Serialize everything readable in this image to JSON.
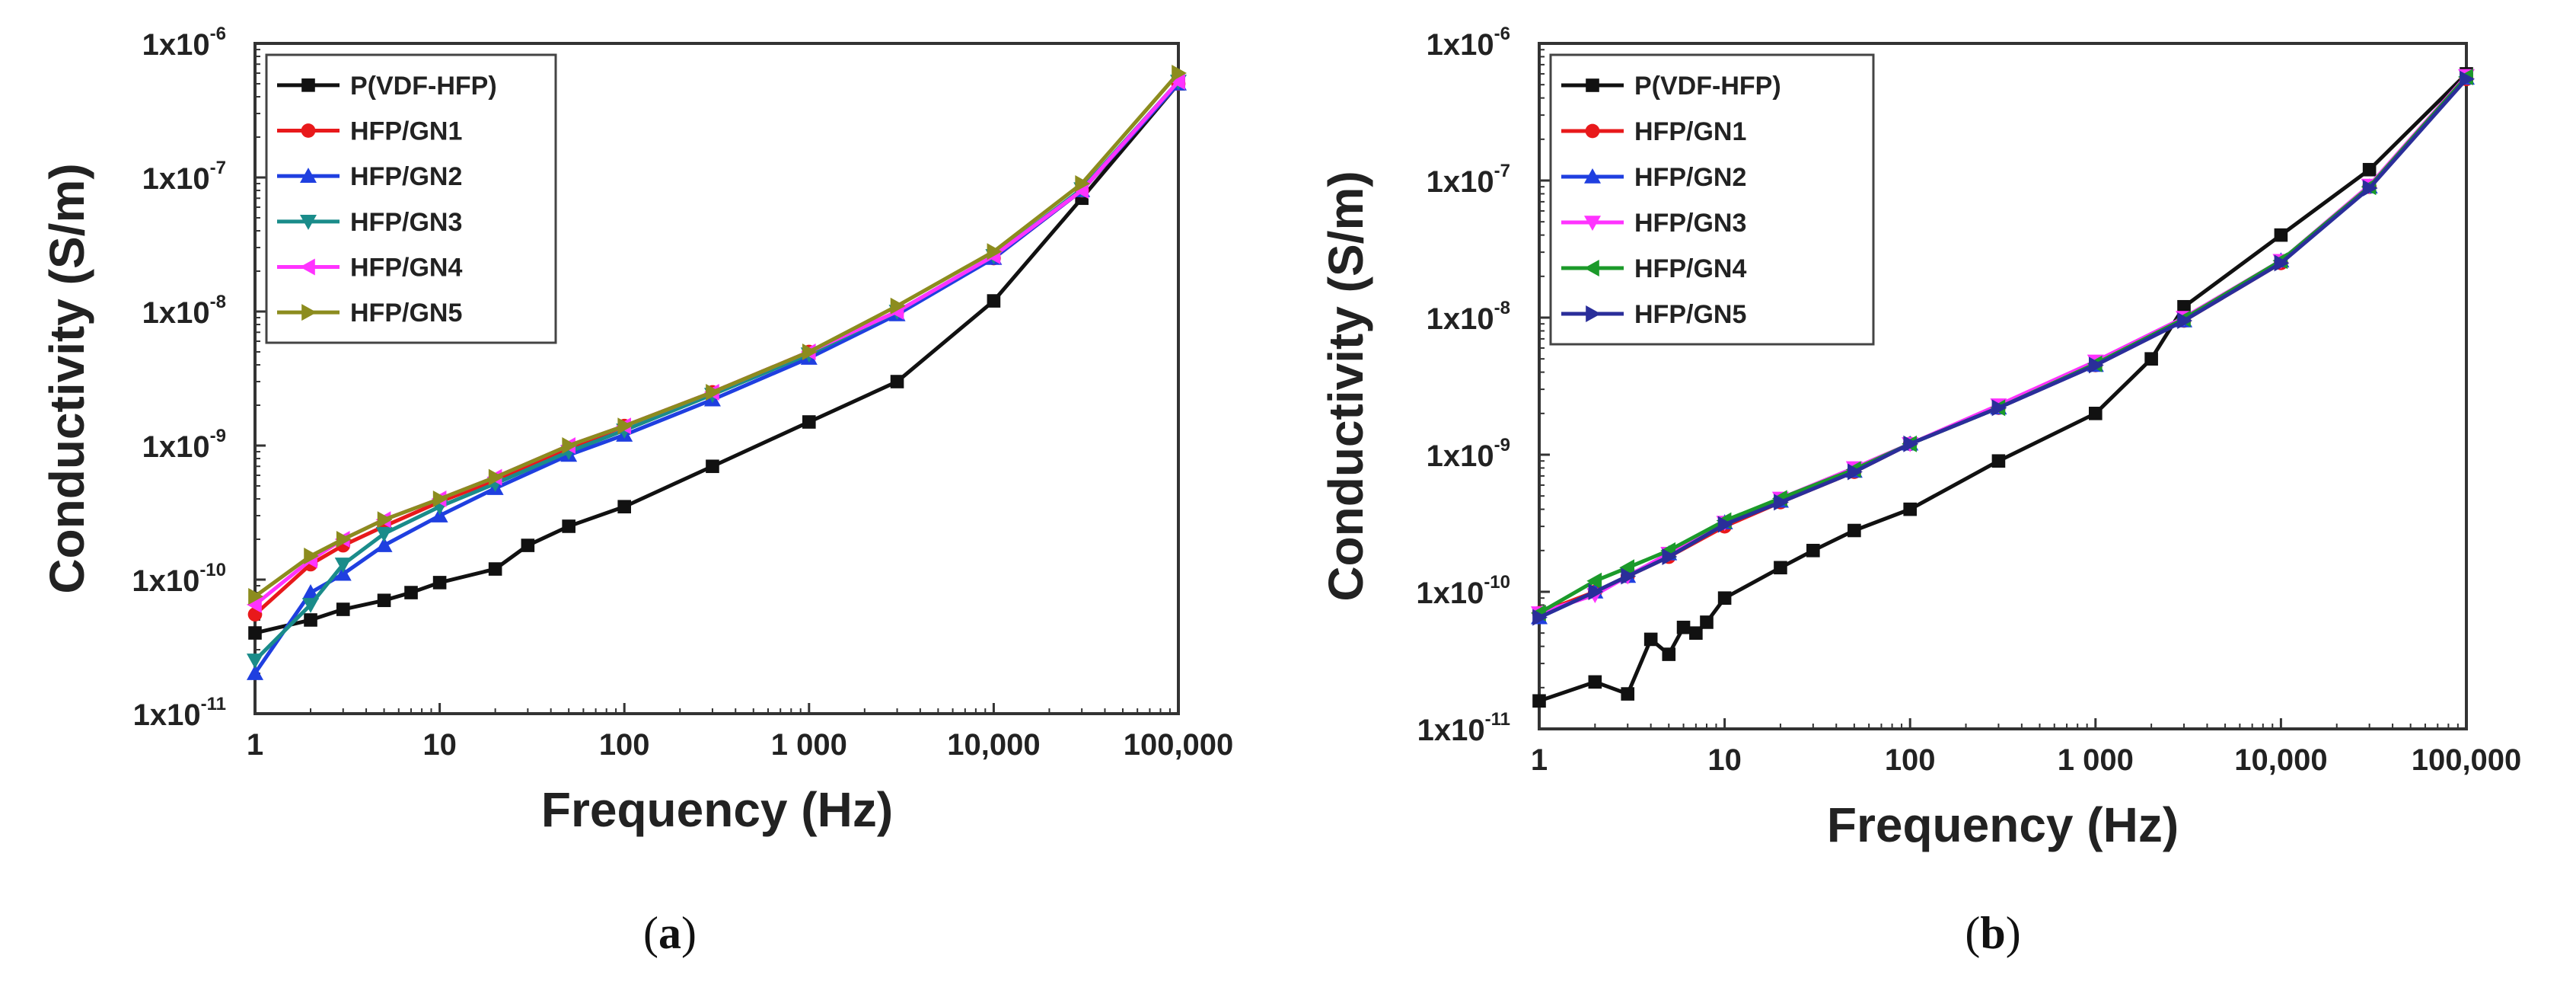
{
  "figure": {
    "colors": {
      "P(VDF-HFP)": "#111111",
      "HFP/GN1": "#e8191b",
      "HFP/GN2": "#1f3fe0",
      "HFP/GN3_a": "#1a8c8a",
      "HFP/GN3_b": "#ff33ff",
      "HFP/GN4_a": "#ff33ff",
      "HFP/GN4_b": "#1b9a2a",
      "HFP/GN5_a": "#8c8c1e",
      "HFP/GN5_b": "#2a2e9a"
    }
  },
  "chart_data": [
    {
      "panel": "a",
      "type": "line",
      "title": "",
      "panel_label": "(a)",
      "panel_letter": "a",
      "xlabel": "Frequency (Hz)",
      "ylabel": "Conductivity (S/m)",
      "xscale": "log",
      "yscale": "log",
      "xlim": [
        1,
        100000
      ],
      "ylim": [
        1e-11,
        1e-06
      ],
      "x_ticks": [
        {
          "value": 1,
          "label": "1"
        },
        {
          "value": 10,
          "label": "10"
        },
        {
          "value": 100,
          "label": "100"
        },
        {
          "value": 1000,
          "label": "1 000"
        },
        {
          "value": 10000,
          "label": "10,000"
        },
        {
          "value": 100000,
          "label": "100,000"
        }
      ],
      "y_ticks": [
        {
          "value": 1e-11,
          "base": "1x10",
          "exp": "-11"
        },
        {
          "value": 1e-10,
          "base": "1x10",
          "exp": "-10"
        },
        {
          "value": 1e-09,
          "base": "1x10",
          "exp": "-9"
        },
        {
          "value": 1e-08,
          "base": "1x10",
          "exp": "-8"
        },
        {
          "value": 1e-07,
          "base": "1x10",
          "exp": "-7"
        },
        {
          "value": 1e-06,
          "base": "1x10",
          "exp": "-6"
        }
      ],
      "legend_position": "top-left",
      "series": [
        {
          "name": "P(VDF-HFP)",
          "color": "#111111",
          "marker": "square",
          "x": [
            1,
            2,
            3,
            5,
            7,
            10,
            20,
            30,
            50,
            100,
            300,
            1000,
            3000,
            10000,
            30000,
            100000
          ],
          "y": [
            4e-11,
            5e-11,
            6e-11,
            7e-11,
            8e-11,
            9.5e-11,
            1.2e-10,
            1.8e-10,
            2.5e-10,
            3.5e-10,
            7e-10,
            1.5e-09,
            3e-09,
            1.2e-08,
            7e-08,
            5e-07
          ]
        },
        {
          "name": "HFP/GN1",
          "color": "#e8191b",
          "marker": "circle",
          "x": [
            1,
            2,
            3,
            5,
            10,
            20,
            50,
            100,
            300,
            1000,
            3000,
            10000,
            30000,
            100000
          ],
          "y": [
            5.5e-11,
            1.3e-10,
            1.8e-10,
            2.5e-10,
            3.8e-10,
            5.5e-10,
            9.5e-10,
            1.4e-09,
            2.5e-09,
            5e-09,
            1e-08,
            2.5e-08,
            8e-08,
            5e-07
          ]
        },
        {
          "name": "HFP/GN2",
          "color": "#1f3fe0",
          "marker": "triangle-up",
          "x": [
            1,
            2,
            3,
            5,
            10,
            20,
            50,
            100,
            300,
            1000,
            3000,
            10000,
            30000,
            100000
          ],
          "y": [
            2e-11,
            8e-11,
            1.1e-10,
            1.8e-10,
            3e-10,
            4.8e-10,
            8.5e-10,
            1.2e-09,
            2.2e-09,
            4.5e-09,
            9.5e-09,
            2.5e-08,
            8e-08,
            5e-07
          ]
        },
        {
          "name": "HFP/GN3",
          "color": "#1a8c8a",
          "marker": "triangle-down",
          "x": [
            1,
            2,
            3,
            5,
            10,
            20,
            50,
            100,
            300,
            1000,
            3000,
            10000,
            30000,
            100000
          ],
          "y": [
            2.5e-11,
            6.5e-11,
            1.3e-10,
            2.2e-10,
            3.5e-10,
            5.2e-10,
            9e-10,
            1.3e-09,
            2.4e-09,
            4.8e-09,
            1e-08,
            2.6e-08,
            8.2e-08,
            5.2e-07
          ]
        },
        {
          "name": "HFP/GN4",
          "color": "#ff33ff",
          "marker": "triangle-left",
          "x": [
            1,
            2,
            3,
            5,
            10,
            20,
            50,
            100,
            300,
            1000,
            3000,
            10000,
            30000,
            100000
          ],
          "y": [
            6.5e-11,
            1.4e-10,
            2e-10,
            2.8e-10,
            4e-10,
            5.8e-10,
            1e-09,
            1.4e-09,
            2.5e-09,
            5e-09,
            1e-08,
            2.6e-08,
            8e-08,
            5.2e-07
          ]
        },
        {
          "name": "HFP/GN5",
          "color": "#8c8c1e",
          "marker": "triangle-right",
          "x": [
            1,
            2,
            3,
            5,
            10,
            20,
            50,
            100,
            300,
            1000,
            3000,
            10000,
            30000,
            100000
          ],
          "y": [
            7.5e-11,
            1.5e-10,
            2e-10,
            2.8e-10,
            4e-10,
            5.8e-10,
            1e-09,
            1.4e-09,
            2.5e-09,
            5e-09,
            1.1e-08,
            2.8e-08,
            9e-08,
            6e-07
          ]
        }
      ]
    },
    {
      "panel": "b",
      "type": "line",
      "title": "",
      "panel_label": "(b)",
      "panel_letter": "b",
      "xlabel": "Frequency (Hz)",
      "ylabel": "Conductivity (S/m)",
      "xscale": "log",
      "yscale": "log",
      "xlim": [
        1,
        100000
      ],
      "ylim": [
        1e-11,
        1e-06
      ],
      "x_ticks": [
        {
          "value": 1,
          "label": "1"
        },
        {
          "value": 10,
          "label": "10"
        },
        {
          "value": 100,
          "label": "100"
        },
        {
          "value": 1000,
          "label": "1 000"
        },
        {
          "value": 10000,
          "label": "10,000"
        },
        {
          "value": 100000,
          "label": "100,000"
        }
      ],
      "y_ticks": [
        {
          "value": 1e-11,
          "base": "1x10",
          "exp": "-11"
        },
        {
          "value": 1e-10,
          "base": "1x10",
          "exp": "-10"
        },
        {
          "value": 1e-09,
          "base": "1x10",
          "exp": "-9"
        },
        {
          "value": 1e-08,
          "base": "1x10",
          "exp": "-8"
        },
        {
          "value": 1e-07,
          "base": "1x10",
          "exp": "-7"
        },
        {
          "value": 1e-06,
          "base": "1x10",
          "exp": "-6"
        }
      ],
      "legend_position": "top-left",
      "series": [
        {
          "name": "P(VDF-HFP)",
          "color": "#111111",
          "marker": "square",
          "x": [
            1,
            2,
            3,
            4,
            5,
            6,
            7,
            8,
            10,
            20,
            30,
            50,
            100,
            300,
            1000,
            2000,
            3000,
            10000,
            30000,
            100000
          ],
          "y": [
            1.6e-11,
            2.2e-11,
            1.8e-11,
            4.5e-11,
            3.5e-11,
            5.5e-11,
            5e-11,
            6e-11,
            9e-11,
            1.5e-10,
            2e-10,
            2.8e-10,
            4e-10,
            9e-10,
            2e-09,
            5e-09,
            1.2e-08,
            4e-08,
            1.2e-07,
            6e-07
          ]
        },
        {
          "name": "HFP/GN1",
          "color": "#e8191b",
          "marker": "circle",
          "x": [
            1,
            2,
            3,
            5,
            10,
            20,
            50,
            100,
            300,
            1000,
            3000,
            10000,
            30000,
            100000
          ],
          "y": [
            7e-11,
            1e-10,
            1.3e-10,
            1.8e-10,
            3e-10,
            4.5e-10,
            7.5e-10,
            1.2e-09,
            2.2e-09,
            4.5e-09,
            9.5e-09,
            2.5e-08,
            9e-08,
            5.5e-07
          ]
        },
        {
          "name": "HFP/GN2",
          "color": "#1f3fe0",
          "marker": "triangle-up",
          "x": [
            1,
            2,
            3,
            5,
            10,
            20,
            50,
            100,
            300,
            1000,
            3000,
            10000,
            30000,
            100000
          ],
          "y": [
            6.5e-11,
            1e-10,
            1.3e-10,
            1.9e-10,
            3.2e-10,
            4.6e-10,
            7.6e-10,
            1.2e-09,
            2.2e-09,
            4.5e-09,
            9.5e-09,
            2.6e-08,
            9e-08,
            5.6e-07
          ]
        },
        {
          "name": "HFP/GN3",
          "color": "#ff33ff",
          "marker": "triangle-down",
          "x": [
            1,
            2,
            3,
            5,
            10,
            20,
            50,
            100,
            300,
            1000,
            3000,
            10000,
            30000,
            100000
          ],
          "y": [
            7e-11,
            9.5e-11,
            1.3e-10,
            1.9e-10,
            3.2e-10,
            4.8e-10,
            8e-10,
            1.2e-09,
            2.3e-09,
            4.8e-09,
            1e-08,
            2.6e-08,
            9.2e-08,
            5.8e-07
          ]
        },
        {
          "name": "HFP/GN4",
          "color": "#1b9a2a",
          "marker": "triangle-left",
          "x": [
            1,
            2,
            3,
            5,
            10,
            20,
            50,
            100,
            300,
            1000,
            3000,
            10000,
            30000,
            100000
          ],
          "y": [
            7e-11,
            1.2e-10,
            1.5e-10,
            2e-10,
            3.3e-10,
            4.8e-10,
            7.8e-10,
            1.2e-09,
            2.2e-09,
            4.6e-09,
            9.8e-09,
            2.6e-08,
            9e-08,
            5.7e-07
          ]
        },
        {
          "name": "HFP/GN5",
          "color": "#2a2e9a",
          "marker": "triangle-right",
          "x": [
            1,
            2,
            3,
            5,
            10,
            20,
            50,
            100,
            300,
            1000,
            3000,
            10000,
            30000,
            100000
          ],
          "y": [
            6.5e-11,
            1e-10,
            1.3e-10,
            1.8e-10,
            3.1e-10,
            4.5e-10,
            7.5e-10,
            1.2e-09,
            2.2e-09,
            4.5e-09,
            9.5e-09,
            2.5e-08,
            8.8e-08,
            5.5e-07
          ]
        }
      ]
    }
  ]
}
